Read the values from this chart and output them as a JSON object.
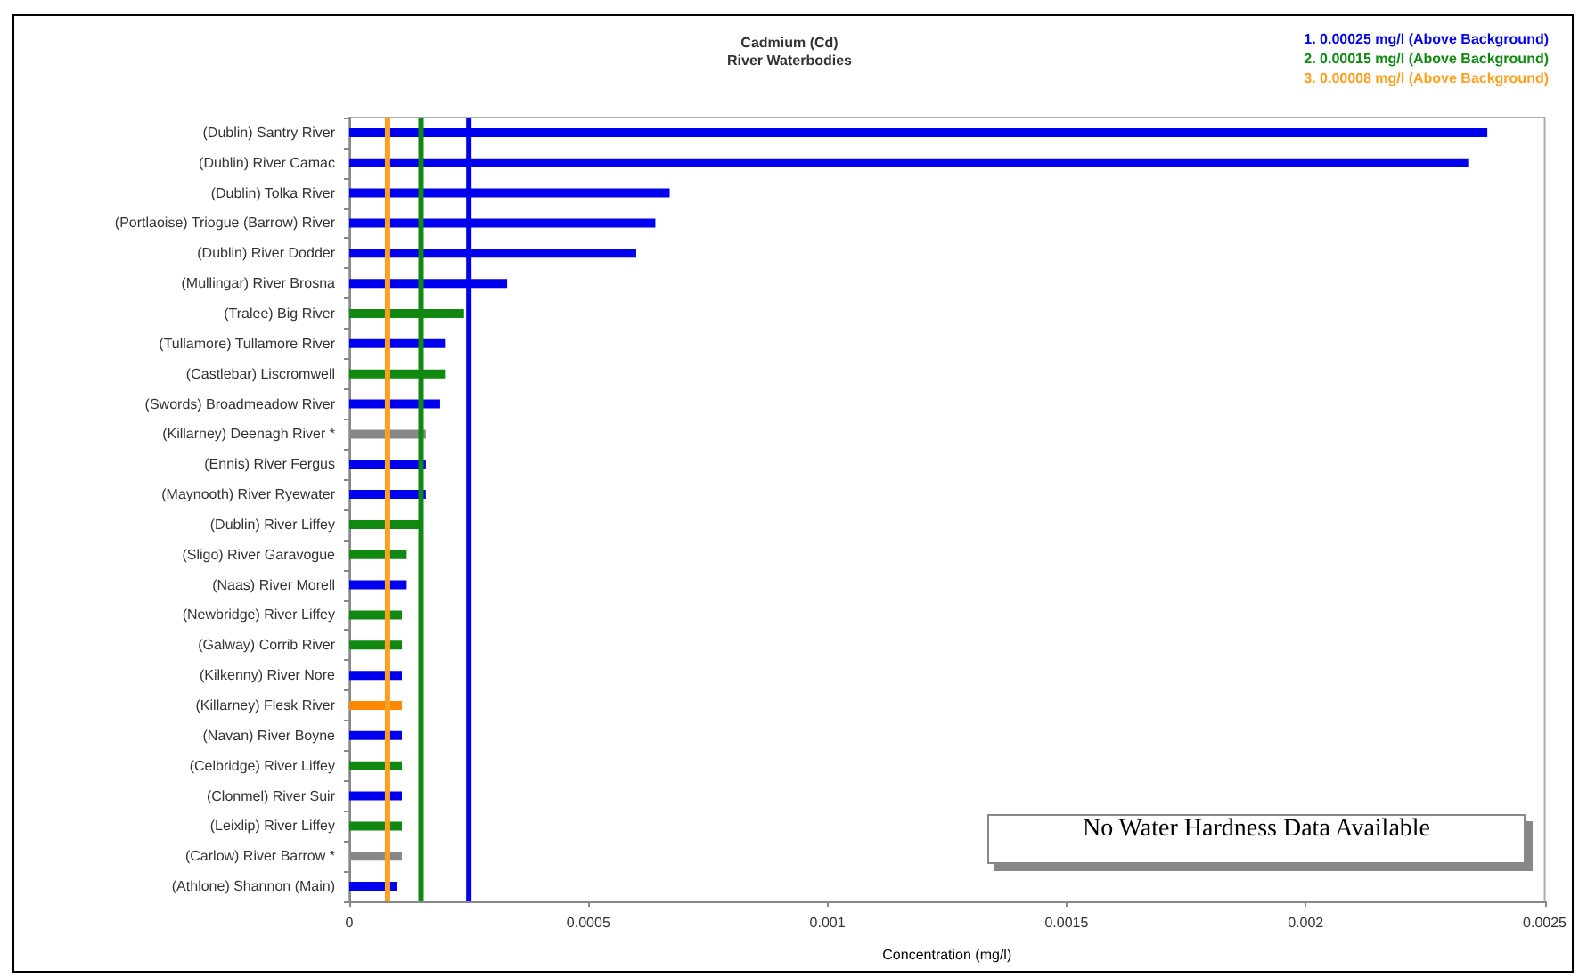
{
  "chart_data": {
    "type": "bar",
    "orientation": "horizontal",
    "title": "Cadmium (Cd)",
    "subtitle": "River Waterbodies",
    "xlabel": "Concentration (mg/l)",
    "categories": [
      "(Dublin) Santry River",
      "(Dublin) River Camac",
      "(Dublin) Tolka River",
      "(Portlaoise) Triogue (Barrow) River",
      "(Dublin) River Dodder",
      "(Mullingar) River Brosna",
      "(Tralee) Big River",
      "(Tullamore) Tullamore River",
      "(Castlebar) Liscromwell",
      "(Swords) Broadmeadow River",
      "(Killarney) Deenagh River *",
      "(Ennis) River Fergus",
      "(Maynooth) River Ryewater",
      "(Dublin) River Liffey",
      "(Sligo) River Garavogue",
      "(Naas) River Morell",
      "(Newbridge) River Liffey",
      "(Galway) Corrib River",
      "(Kilkenny) River Nore",
      "(Killarney) Flesk River",
      "(Navan) River Boyne",
      "(Celbridge) River Liffey",
      "(Clonmel) River Suir",
      "(Leixlip) River Liffey",
      "(Carlow) River Barrow *",
      "(Athlone) Shannon (Main)"
    ],
    "values": [
      0.00238,
      0.00234,
      0.00067,
      0.00064,
      0.0006,
      0.00033,
      0.00024,
      0.0002,
      0.0002,
      0.00019,
      0.00016,
      0.00016,
      0.00016,
      0.00015,
      0.00012,
      0.00012,
      0.00011,
      0.00011,
      0.00011,
      0.00011,
      0.00011,
      0.00011,
      0.00011,
      0.00011,
      0.00011,
      0.0001
    ],
    "colors": [
      "#0000ee",
      "#0000ee",
      "#0000ee",
      "#0000ee",
      "#0000ee",
      "#0000ee",
      "#118811",
      "#0000ee",
      "#118811",
      "#0000ee",
      "#888888",
      "#0000ee",
      "#0000ee",
      "#118811",
      "#118811",
      "#0000ee",
      "#118811",
      "#118811",
      "#0000ee",
      "#ff8800",
      "#0000ee",
      "#118811",
      "#0000ee",
      "#118811",
      "#888888",
      "#0000ee"
    ],
    "xlim": [
      0,
      0.0025
    ],
    "xticks": [
      0,
      0.0005,
      0.001,
      0.0015,
      0.002,
      0.0025
    ],
    "grid": false,
    "ref_lines": [
      {
        "axis": "x",
        "value": 0.00025,
        "label": "1. 0.00025 mg/l (Above Background)",
        "color": "#0000ee"
      },
      {
        "axis": "x",
        "value": 0.00015,
        "label": "2. 0.00015 mg/l (Above Background)",
        "color": "#118811"
      },
      {
        "axis": "x",
        "value": 8e-05,
        "label": "3. 0.00008 mg/l (Above Background)",
        "color": "#ffa020"
      }
    ],
    "annotations": [
      "No Water Hardness Data Available"
    ]
  }
}
